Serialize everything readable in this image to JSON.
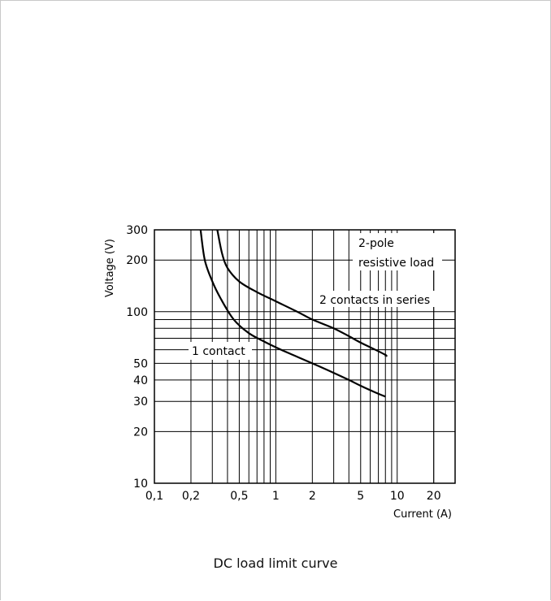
{
  "chart_data": {
    "type": "line",
    "title": "",
    "caption": "DC load limit curve",
    "xlabel": "Current (A)",
    "ylabel": "Voltage (V)",
    "x_scale": "log",
    "y_scale": "log",
    "xlim": [
      0.1,
      30
    ],
    "ylim": [
      10,
      300
    ],
    "grid": true,
    "x_ticks": [
      0.1,
      0.2,
      0.5,
      1,
      2,
      5,
      10,
      20
    ],
    "x_tick_labels": [
      "0,1",
      "0,2",
      "0,5",
      "1",
      "2",
      "5",
      "10",
      "20"
    ],
    "y_ticks": [
      10,
      20,
      30,
      40,
      50,
      100,
      200,
      300
    ],
    "y_tick_labels": [
      "10",
      "20",
      "30",
      "40",
      "50",
      "100",
      "200",
      "300"
    ],
    "annotations": [
      "2-pole",
      "resistive load",
      "2 contacts in series",
      "1 contact"
    ],
    "series": [
      {
        "name": "1 contact",
        "x": [
          0.24,
          0.26,
          0.3,
          0.35,
          0.45,
          0.6,
          0.8,
          1.0,
          1.3,
          2.0,
          3.0,
          4.0,
          5.0,
          6.5,
          8.0
        ],
        "y": [
          300,
          200,
          150,
          120,
          90,
          75,
          67,
          62,
          57,
          50,
          44,
          40,
          37,
          34,
          32
        ]
      },
      {
        "name": "2 contacts in series",
        "x": [
          0.33,
          0.36,
          0.4,
          0.5,
          0.7,
          1.0,
          1.5,
          2.0,
          3.0,
          4.0,
          5.0,
          6.0,
          8.0,
          8.0
        ],
        "y": [
          300,
          220,
          180,
          150,
          130,
          115,
          100,
          90,
          80,
          72,
          66,
          62,
          56,
          55
        ]
      }
    ]
  }
}
